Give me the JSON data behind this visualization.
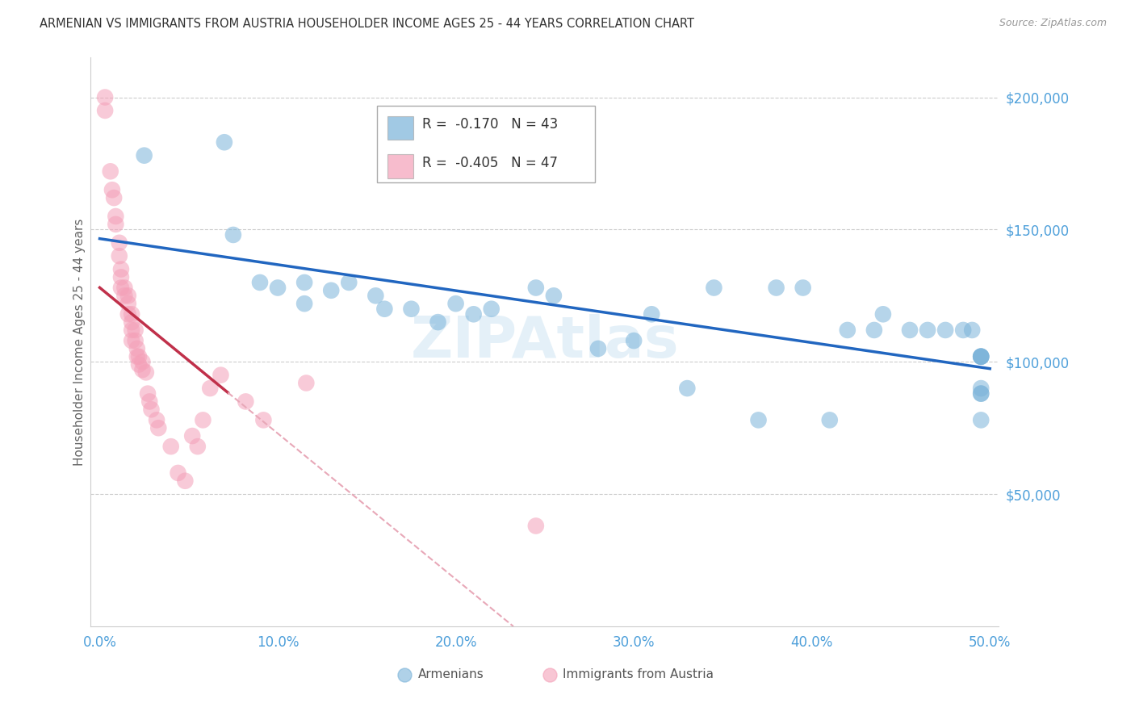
{
  "title": "ARMENIAN VS IMMIGRANTS FROM AUSTRIA HOUSEHOLDER INCOME AGES 25 - 44 YEARS CORRELATION CHART",
  "source": "Source: ZipAtlas.com",
  "ylabel": "Householder Income Ages 25 - 44 years",
  "xlabel_ticks": [
    "0.0%",
    "10.0%",
    "20.0%",
    "30.0%",
    "40.0%",
    "50.0%"
  ],
  "xlabel_vals": [
    0.0,
    0.1,
    0.2,
    0.3,
    0.4,
    0.5
  ],
  "ylim": [
    0,
    215000
  ],
  "xlim": [
    -0.005,
    0.505
  ],
  "r_armenians": "-0.170",
  "n_armenians": "43",
  "r_austria": "-0.405",
  "n_austria": "47",
  "armenian_color": "#7ab3d9",
  "austria_color": "#f4a0b8",
  "armenian_line_color": "#2166c0",
  "austria_line_solid_color": "#c0304a",
  "austria_line_dashed_color": "#e8a8b8",
  "background_color": "#ffffff",
  "grid_color": "#cccccc",
  "tick_color": "#4d9fda",
  "legend_armenians": "Armenians",
  "legend_austria": "Immigrants from Austria",
  "armenians_x": [
    0.025,
    0.07,
    0.075,
    0.09,
    0.1,
    0.115,
    0.115,
    0.13,
    0.14,
    0.155,
    0.16,
    0.175,
    0.19,
    0.2,
    0.21,
    0.22,
    0.245,
    0.255,
    0.28,
    0.3,
    0.31,
    0.33,
    0.345,
    0.37,
    0.38,
    0.395,
    0.41,
    0.42,
    0.435,
    0.44,
    0.455,
    0.465,
    0.475,
    0.485,
    0.49,
    0.495,
    0.495,
    0.495,
    0.495,
    0.495,
    0.495,
    0.495,
    0.495
  ],
  "armenians_y": [
    178000,
    183000,
    148000,
    130000,
    128000,
    130000,
    122000,
    127000,
    130000,
    125000,
    120000,
    120000,
    115000,
    122000,
    118000,
    120000,
    128000,
    125000,
    105000,
    108000,
    118000,
    90000,
    128000,
    78000,
    128000,
    128000,
    78000,
    112000,
    112000,
    118000,
    112000,
    112000,
    112000,
    112000,
    112000,
    102000,
    88000,
    78000,
    102000,
    102000,
    88000,
    102000,
    90000
  ],
  "austria_x": [
    0.003,
    0.003,
    0.006,
    0.007,
    0.008,
    0.009,
    0.009,
    0.011,
    0.011,
    0.012,
    0.012,
    0.012,
    0.014,
    0.014,
    0.016,
    0.016,
    0.016,
    0.018,
    0.018,
    0.018,
    0.018,
    0.02,
    0.02,
    0.021,
    0.021,
    0.022,
    0.022,
    0.024,
    0.024,
    0.026,
    0.027,
    0.028,
    0.029,
    0.032,
    0.033,
    0.04,
    0.044,
    0.048,
    0.052,
    0.055,
    0.058,
    0.062,
    0.068,
    0.082,
    0.092,
    0.116,
    0.245
  ],
  "austria_y": [
    200000,
    195000,
    172000,
    165000,
    162000,
    155000,
    152000,
    145000,
    140000,
    135000,
    132000,
    128000,
    128000,
    125000,
    125000,
    122000,
    118000,
    118000,
    115000,
    112000,
    108000,
    112000,
    108000,
    105000,
    102000,
    102000,
    99000,
    100000,
    97000,
    96000,
    88000,
    85000,
    82000,
    78000,
    75000,
    68000,
    58000,
    55000,
    72000,
    68000,
    78000,
    90000,
    95000,
    85000,
    78000,
    92000,
    38000
  ],
  "watermark": "ZIPAtlas"
}
